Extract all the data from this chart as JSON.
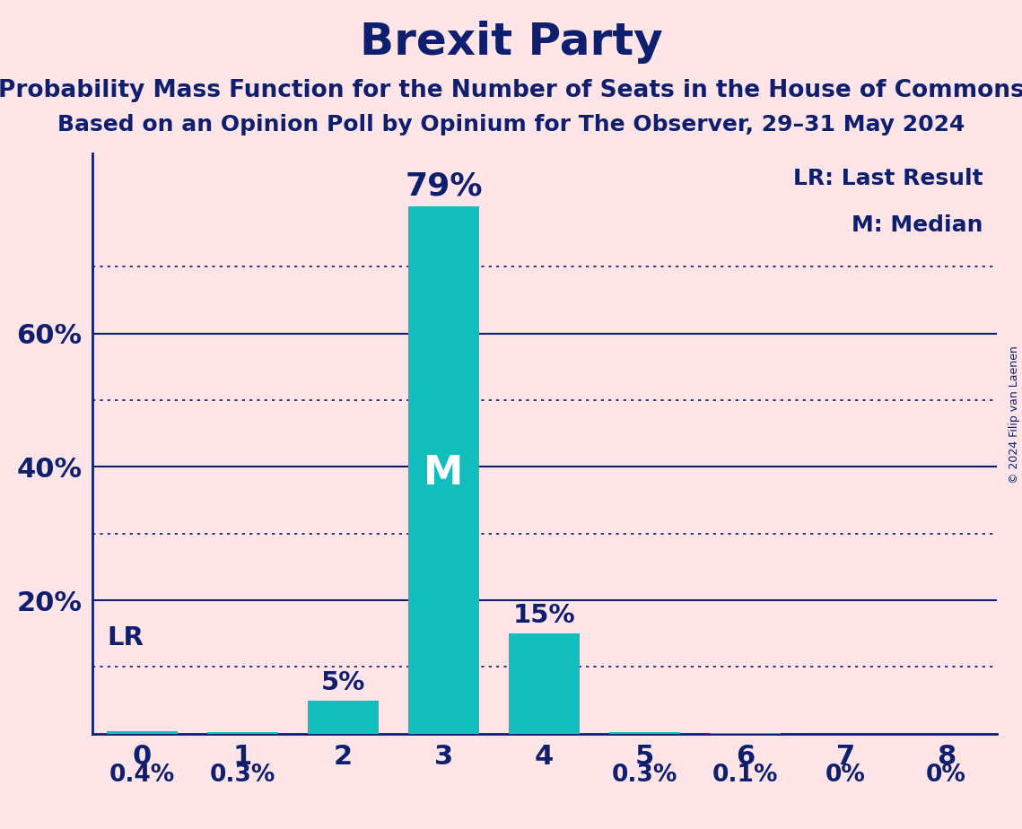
{
  "title": "Brexit Party",
  "subtitle1": "Probability Mass Function for the Number of Seats in the House of Commons",
  "subtitle2": "Based on an Opinion Poll by Opinium for The Observer, 29–31 May 2024",
  "copyright": "© 2024 Filip van Laenen",
  "categories": [
    0,
    1,
    2,
    3,
    4,
    5,
    6,
    7,
    8
  ],
  "values": [
    0.4,
    0.3,
    5.0,
    79.0,
    15.0,
    0.3,
    0.1,
    0.0,
    0.0
  ],
  "bar_color": "#12BDBD",
  "background_color": "#FFE4E8",
  "text_color": "#0D1F6E",
  "bar_labels": [
    "0.4%",
    "0.3%",
    "5%",
    "79%",
    "15%",
    "0.3%",
    "0.1%",
    "0%",
    "0%"
  ],
  "median_bar": 3,
  "median_label": "M",
  "lr_bar": 0,
  "lr_label": "LR",
  "legend_lr": "LR: Last Result",
  "legend_m": "M: Median",
  "ylim": [
    0,
    87
  ],
  "yticks": [
    20,
    40,
    60
  ],
  "ytick_labels": [
    "20%",
    "40%",
    "60%"
  ],
  "dotted_lines": [
    10,
    30,
    50,
    70
  ],
  "solid_lines": [
    20,
    40,
    60
  ],
  "title_fontsize": 36,
  "subtitle_fontsize": 19,
  "axis_label_fontsize": 22,
  "bar_label_fontsize": 21,
  "legend_fontsize": 18,
  "copyright_fontsize": 9
}
